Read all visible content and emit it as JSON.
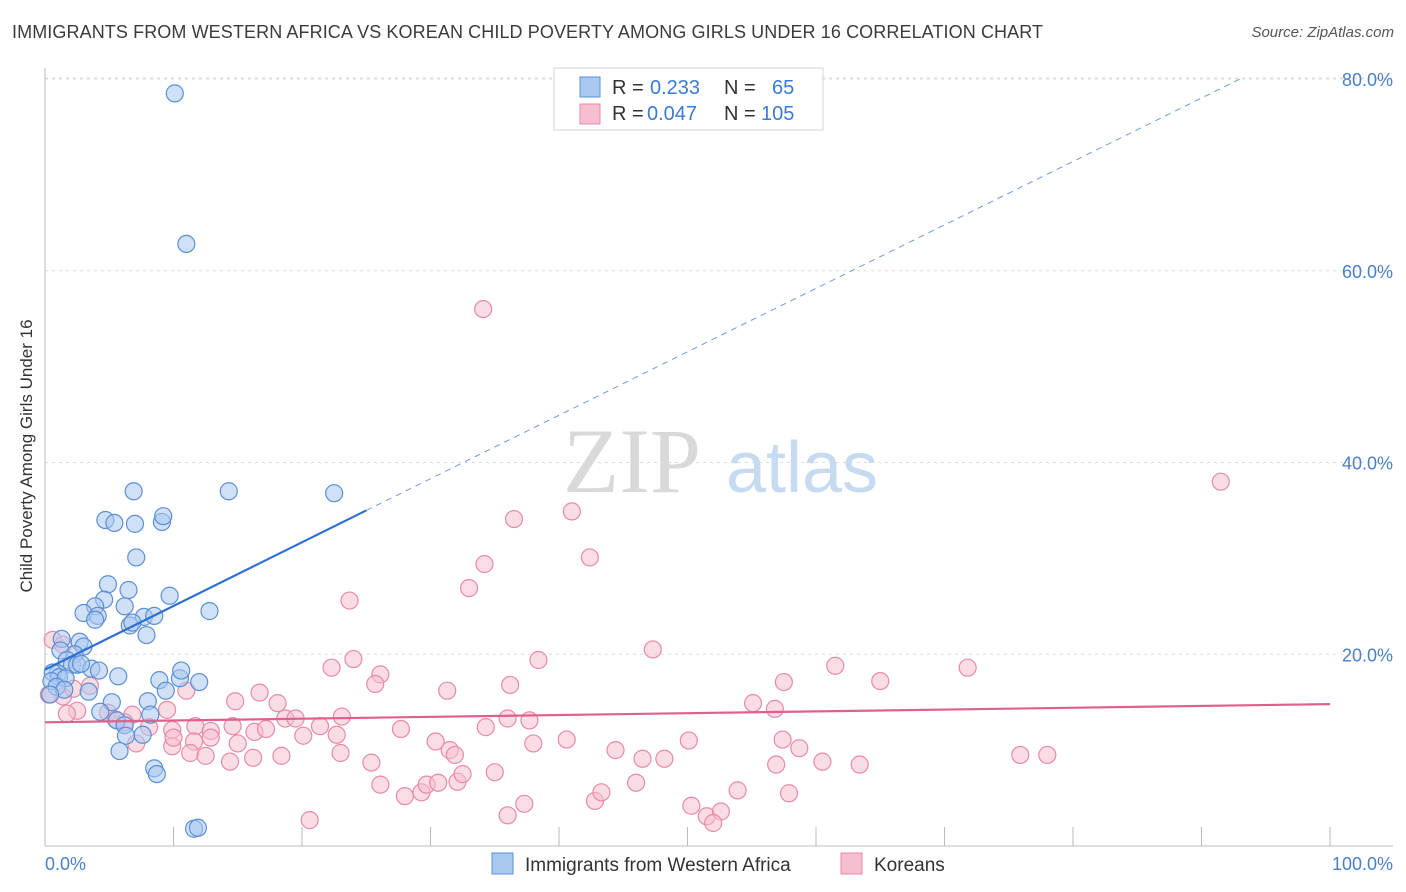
{
  "title": "IMMIGRANTS FROM WESTERN AFRICA VS KOREAN CHILD POVERTY AMONG GIRLS UNDER 16 CORRELATION CHART",
  "source": "Source: ZipAtlas.com",
  "watermark": {
    "zip": "ZIP",
    "atlas": "atlas"
  },
  "colors": {
    "blue_fill": "#a9c8f0",
    "blue_stroke": "#5b8fd6",
    "blue_line": "#2f6fd1",
    "pink_fill": "#f6bfd0",
    "pink_stroke": "#e88aa8",
    "pink_line": "#e0608d",
    "tick_text": "#4a80c8",
    "grid": "#dcdcdc"
  },
  "legend": {
    "rows": [
      {
        "r_label": "R =",
        "r_value": "0.233",
        "n_label": "N =",
        "n_value": "65"
      },
      {
        "r_label": "R =",
        "r_value": "0.047",
        "n_label": "N =",
        "n_value": "105"
      }
    ]
  },
  "bottom_legend": [
    "Immigrants from Western Africa",
    "Koreans"
  ],
  "chart_data": {
    "type": "scatter",
    "title": "IMMIGRANTS FROM WESTERN AFRICA VS KOREAN CHILD POVERTY AMONG GIRLS UNDER 16 CORRELATION CHART",
    "xlabel": "",
    "ylabel": "Child Poverty Among Girls Under 16",
    "xlim": [
      0,
      100
    ],
    "ylim": [
      0,
      80
    ],
    "x_tick_labels": [
      "0.0%",
      "100.0%"
    ],
    "y_tick_labels": [
      "20.0%",
      "40.0%",
      "60.0%",
      "80.0%"
    ],
    "y_ticks": [
      20,
      40,
      60,
      80
    ],
    "grid": true,
    "legend_position": "top-center",
    "series": [
      {
        "name": "Immigrants from Western Africa",
        "trend": {
          "x0": 0,
          "y0": 18.4,
          "x1": 25,
          "y1": 35,
          "dashed_to_x": 93,
          "dashed_to_y": 80
        },
        "points": [
          [
            10.1,
            78.5
          ],
          [
            11.0,
            62.8
          ],
          [
            6.9,
            37.0
          ],
          [
            14.3,
            37.0
          ],
          [
            22.5,
            36.8
          ],
          [
            4.7,
            34.0
          ],
          [
            5.4,
            33.7
          ],
          [
            7.0,
            33.6
          ],
          [
            9.1,
            33.8
          ],
          [
            9.2,
            34.4
          ],
          [
            7.1,
            30.1
          ],
          [
            4.9,
            27.3
          ],
          [
            6.5,
            26.7
          ],
          [
            9.7,
            26.1
          ],
          [
            4.6,
            25.7
          ],
          [
            3.9,
            25.0
          ],
          [
            6.2,
            25.0
          ],
          [
            3.0,
            24.3
          ],
          [
            12.8,
            24.5
          ],
          [
            4.1,
            24.0
          ],
          [
            7.7,
            23.9
          ],
          [
            8.5,
            24.0
          ],
          [
            6.6,
            23.0
          ],
          [
            3.9,
            23.6
          ],
          [
            6.8,
            23.3
          ],
          [
            7.9,
            22.0
          ],
          [
            1.3,
            21.6
          ],
          [
            2.7,
            21.3
          ],
          [
            3.0,
            20.8
          ],
          [
            1.2,
            20.4
          ],
          [
            2.3,
            20.0
          ],
          [
            1.7,
            19.4
          ],
          [
            2.1,
            18.9
          ],
          [
            2.5,
            18.9
          ],
          [
            3.6,
            18.5
          ],
          [
            4.2,
            18.3
          ],
          [
            1.0,
            18.0
          ],
          [
            0.6,
            18.1
          ],
          [
            1.1,
            17.6
          ],
          [
            0.5,
            17.2
          ],
          [
            1.6,
            17.5
          ],
          [
            5.7,
            17.7
          ],
          [
            8.9,
            17.3
          ],
          [
            10.5,
            17.5
          ],
          [
            12.0,
            17.1
          ],
          [
            10.6,
            18.3
          ],
          [
            0.9,
            16.6
          ],
          [
            1.5,
            16.3
          ],
          [
            3.4,
            16.1
          ],
          [
            9.4,
            16.2
          ],
          [
            0.4,
            15.8
          ],
          [
            5.2,
            15.0
          ],
          [
            8.0,
            15.1
          ],
          [
            4.3,
            14.0
          ],
          [
            8.2,
            13.7
          ],
          [
            5.6,
            13.1
          ],
          [
            6.2,
            12.6
          ],
          [
            7.6,
            11.6
          ],
          [
            6.3,
            11.5
          ],
          [
            5.8,
            9.9
          ],
          [
            8.5,
            8.1
          ],
          [
            8.7,
            7.5
          ],
          [
            11.6,
            1.8
          ],
          [
            11.9,
            1.9
          ],
          [
            2.8,
            19.0
          ]
        ]
      },
      {
        "name": "Koreans",
        "trend": {
          "x0": 0,
          "y0": 12.9,
          "x1": 100,
          "y1": 14.8
        },
        "points": [
          [
            34.1,
            56.0
          ],
          [
            91.5,
            38.0
          ],
          [
            36.5,
            34.1
          ],
          [
            41.0,
            34.9
          ],
          [
            34.2,
            29.4
          ],
          [
            42.4,
            30.1
          ],
          [
            33.0,
            26.9
          ],
          [
            23.7,
            25.6
          ],
          [
            47.3,
            20.5
          ],
          [
            61.5,
            18.8
          ],
          [
            71.8,
            18.6
          ],
          [
            24.0,
            19.5
          ],
          [
            38.4,
            19.4
          ],
          [
            22.3,
            18.6
          ],
          [
            26.1,
            17.9
          ],
          [
            36.2,
            16.8
          ],
          [
            25.7,
            16.9
          ],
          [
            57.5,
            17.1
          ],
          [
            65.0,
            17.2
          ],
          [
            31.3,
            16.2
          ],
          [
            16.7,
            16.0
          ],
          [
            11.0,
            16.2
          ],
          [
            14.8,
            15.1
          ],
          [
            18.1,
            14.9
          ],
          [
            55.1,
            14.9
          ],
          [
            56.8,
            14.3
          ],
          [
            9.5,
            14.2
          ],
          [
            2.5,
            14.1
          ],
          [
            6.8,
            13.7
          ],
          [
            18.7,
            13.3
          ],
          [
            36.0,
            13.3
          ],
          [
            23.1,
            13.5
          ],
          [
            19.5,
            13.3
          ],
          [
            37.7,
            13.1
          ],
          [
            1.4,
            15.6
          ],
          [
            0.3,
            15.8
          ],
          [
            0.6,
            21.5
          ],
          [
            1.4,
            21.0
          ],
          [
            3.5,
            16.7
          ],
          [
            2.2,
            16.4
          ],
          [
            1.7,
            13.8
          ],
          [
            4.9,
            13.9
          ],
          [
            5.5,
            13.2
          ],
          [
            6.2,
            12.9
          ],
          [
            8.1,
            12.4
          ],
          [
            9.9,
            12.1
          ],
          [
            11.7,
            12.5
          ],
          [
            12.9,
            12.0
          ],
          [
            14.6,
            12.5
          ],
          [
            16.3,
            11.9
          ],
          [
            17.2,
            12.2
          ],
          [
            21.4,
            12.5
          ],
          [
            27.7,
            12.2
          ],
          [
            34.3,
            12.4
          ],
          [
            40.6,
            11.1
          ],
          [
            50.1,
            11.0
          ],
          [
            57.4,
            11.1
          ],
          [
            7.1,
            10.7
          ],
          [
            9.9,
            10.4
          ],
          [
            10.0,
            11.3
          ],
          [
            11.6,
            10.9
          ],
          [
            12.9,
            11.3
          ],
          [
            15.0,
            10.7
          ],
          [
            20.1,
            11.5
          ],
          [
            22.7,
            11.6
          ],
          [
            30.4,
            10.9
          ],
          [
            31.5,
            10.0
          ],
          [
            38.0,
            10.7
          ],
          [
            44.4,
            10.0
          ],
          [
            46.5,
            9.1
          ],
          [
            48.2,
            9.1
          ],
          [
            56.9,
            8.5
          ],
          [
            63.4,
            8.5
          ],
          [
            58.7,
            10.2
          ],
          [
            60.5,
            8.8
          ],
          [
            75.9,
            9.5
          ],
          [
            78.0,
            9.5
          ],
          [
            11.3,
            9.7
          ],
          [
            12.5,
            9.4
          ],
          [
            14.4,
            8.8
          ],
          [
            16.2,
            9.2
          ],
          [
            18.4,
            9.4
          ],
          [
            23.0,
            9.7
          ],
          [
            25.4,
            8.7
          ],
          [
            31.9,
            9.5
          ],
          [
            26.1,
            6.4
          ],
          [
            28.0,
            5.2
          ],
          [
            29.3,
            5.6
          ],
          [
            29.7,
            6.4
          ],
          [
            30.6,
            6.6
          ],
          [
            32.1,
            6.7
          ],
          [
            36.0,
            3.2
          ],
          [
            37.3,
            4.4
          ],
          [
            42.8,
            4.7
          ],
          [
            43.3,
            5.6
          ],
          [
            46.0,
            6.6
          ],
          [
            50.3,
            4.2
          ],
          [
            51.5,
            3.1
          ],
          [
            52.6,
            3.6
          ],
          [
            53.9,
            5.8
          ],
          [
            57.9,
            5.5
          ],
          [
            20.6,
            2.7
          ],
          [
            52.0,
            2.4
          ],
          [
            35.0,
            7.7
          ],
          [
            32.5,
            7.5
          ]
        ]
      }
    ]
  }
}
